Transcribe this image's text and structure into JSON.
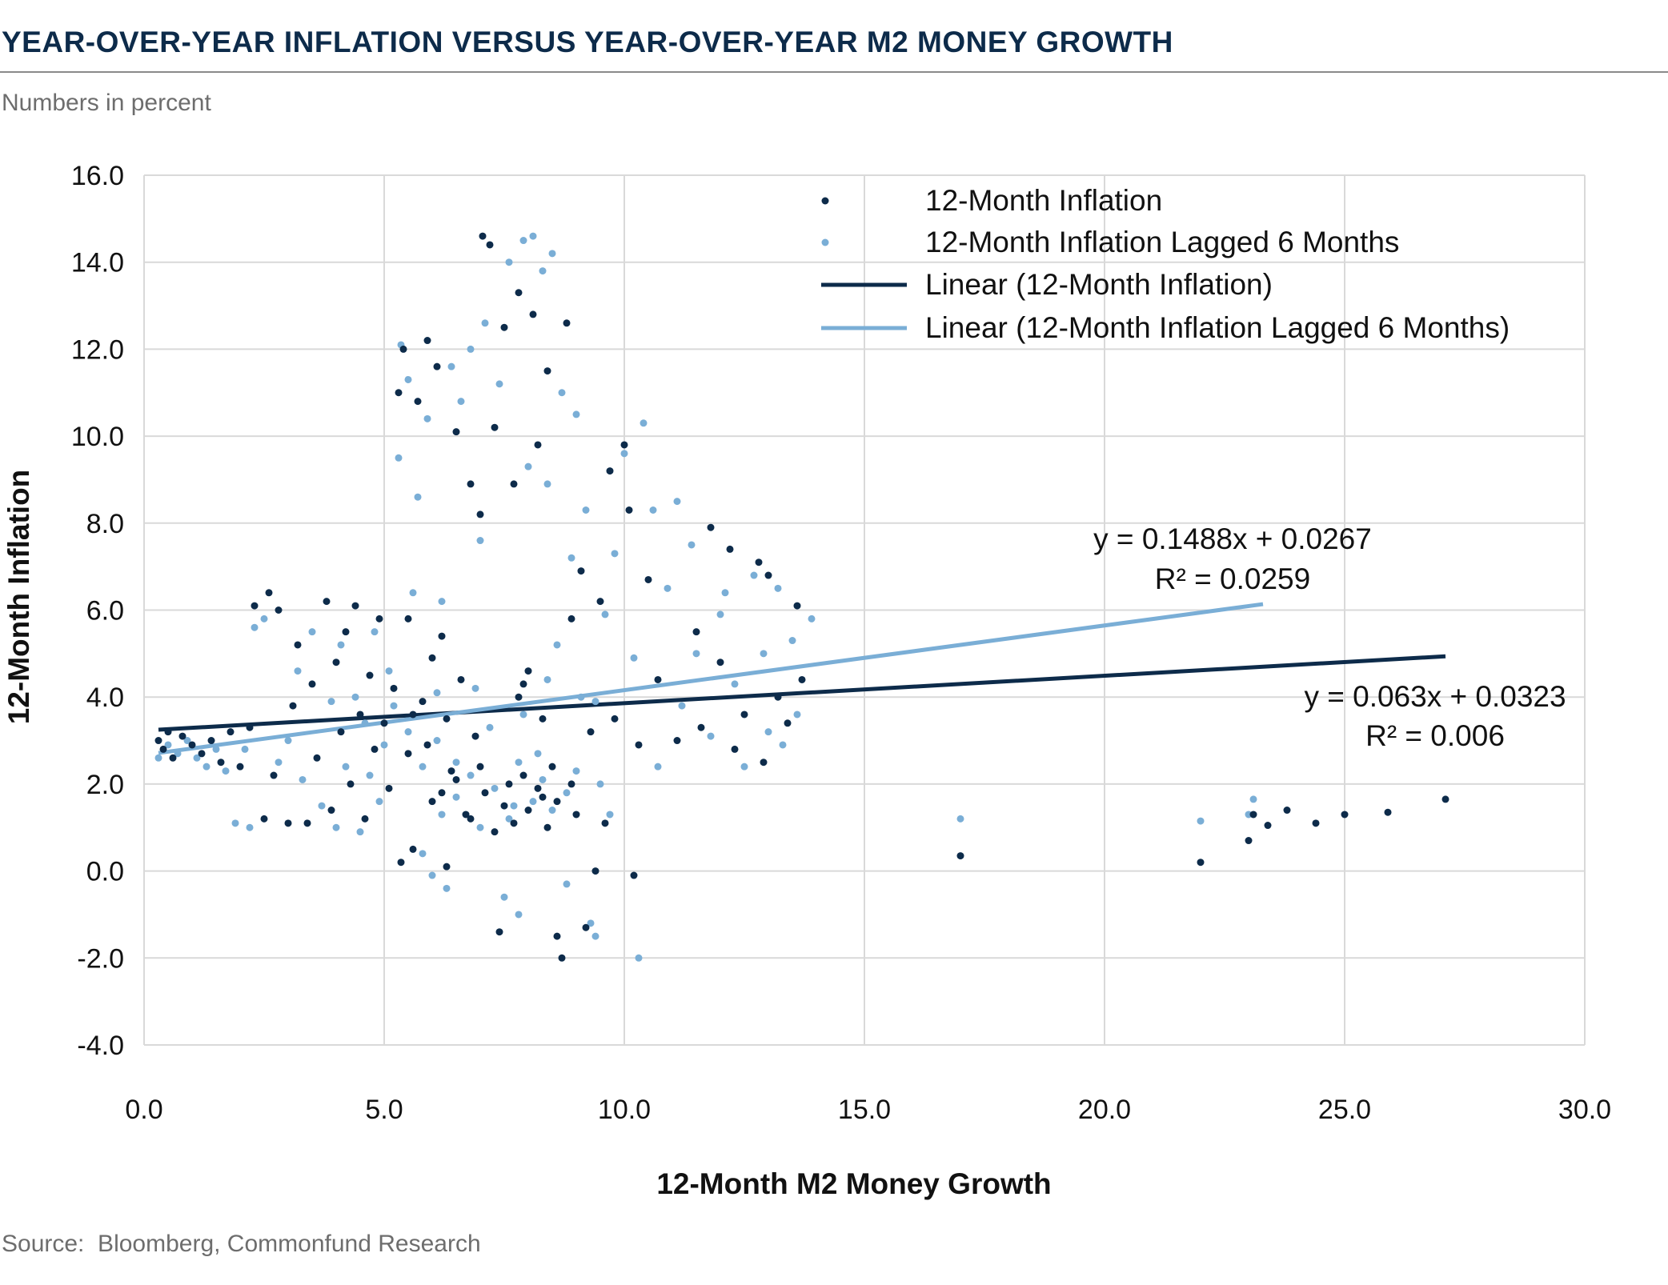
{
  "header": {
    "title": "YEAR-OVER-YEAR INFLATION VERSUS YEAR-OVER-YEAR M2 MONEY GROWTH",
    "subtitle": "Numbers in percent"
  },
  "footer": {
    "source": "Source:  Bloomberg, Commonfund Research"
  },
  "colors": {
    "dark": "#0d2b4a",
    "light": "#7aaed6",
    "grid": "#d9d9d9",
    "title": "#0d2b4a"
  },
  "chart_data": {
    "type": "scatter",
    "title": "YEAR-OVER-YEAR INFLATION VERSUS YEAR-OVER-YEAR M2 MONEY GROWTH",
    "xlabel": "12-Month M2 Money Growth",
    "ylabel": "12-Month Inflation",
    "xlim": [
      0,
      30
    ],
    "ylim": [
      -4,
      16
    ],
    "xticks": [
      "0.0",
      "5.0",
      "10.0",
      "15.0",
      "20.0",
      "25.0",
      "30.0"
    ],
    "yticks": [
      "16.0",
      "14.0",
      "12.0",
      "10.0",
      "8.0",
      "6.0",
      "4.0",
      "2.0",
      "0.0",
      "-2.0",
      "-4.0"
    ],
    "grid": true,
    "legend_position": "top-right",
    "legend": [
      "12-Month Inflation",
      "12-Month Inflation Lagged 6 Months",
      "Linear (12-Month Inflation)",
      "Linear (12-Month Inflation Lagged 6 Months)"
    ],
    "series": [
      {
        "name": "12-Month Inflation",
        "color": "#0d2b4a",
        "points": [
          [
            0.3,
            3.0
          ],
          [
            0.4,
            2.8
          ],
          [
            0.5,
            3.2
          ],
          [
            0.6,
            2.6
          ],
          [
            0.8,
            3.1
          ],
          [
            1.0,
            2.9
          ],
          [
            1.2,
            2.7
          ],
          [
            1.4,
            3.0
          ],
          [
            1.6,
            2.5
          ],
          [
            1.8,
            3.2
          ],
          [
            2.0,
            2.4
          ],
          [
            2.2,
            3.3
          ],
          [
            2.3,
            6.1
          ],
          [
            2.6,
            6.4
          ],
          [
            2.8,
            6.0
          ],
          [
            2.5,
            1.2
          ],
          [
            2.7,
            2.2
          ],
          [
            3.0,
            1.1
          ],
          [
            3.1,
            3.8
          ],
          [
            3.2,
            5.2
          ],
          [
            3.4,
            1.1
          ],
          [
            3.5,
            4.3
          ],
          [
            3.6,
            2.6
          ],
          [
            3.8,
            6.2
          ],
          [
            3.9,
            1.4
          ],
          [
            4.0,
            4.8
          ],
          [
            4.1,
            3.2
          ],
          [
            4.2,
            5.5
          ],
          [
            4.3,
            2.0
          ],
          [
            4.4,
            6.1
          ],
          [
            4.5,
            3.6
          ],
          [
            4.6,
            1.2
          ],
          [
            4.7,
            4.5
          ],
          [
            4.8,
            2.8
          ],
          [
            4.9,
            5.8
          ],
          [
            5.0,
            3.4
          ],
          [
            5.1,
            1.9
          ],
          [
            5.2,
            4.2
          ],
          [
            5.3,
            11.0
          ],
          [
            5.35,
            0.2
          ],
          [
            5.4,
            12.0
          ],
          [
            5.5,
            2.7
          ],
          [
            5.6,
            0.5
          ],
          [
            5.7,
            10.8
          ],
          [
            5.8,
            3.9
          ],
          [
            5.9,
            12.2
          ],
          [
            6.0,
            1.6
          ],
          [
            6.1,
            11.6
          ],
          [
            6.2,
            5.4
          ],
          [
            6.3,
            0.1
          ],
          [
            6.4,
            2.3
          ],
          [
            6.5,
            10.1
          ],
          [
            6.6,
            4.4
          ],
          [
            6.7,
            1.3
          ],
          [
            6.8,
            8.9
          ],
          [
            6.9,
            3.1
          ],
          [
            7.0,
            8.2
          ],
          [
            7.05,
            14.6
          ],
          [
            7.1,
            1.8
          ],
          [
            7.2,
            14.4
          ],
          [
            7.3,
            10.2
          ],
          [
            7.4,
            -1.4
          ],
          [
            7.5,
            12.5
          ],
          [
            7.6,
            2.0
          ],
          [
            7.7,
            8.9
          ],
          [
            7.8,
            13.3
          ],
          [
            7.9,
            4.3
          ],
          [
            8.0,
            1.4
          ],
          [
            8.1,
            12.8
          ],
          [
            8.2,
            9.8
          ],
          [
            8.3,
            1.7
          ],
          [
            8.4,
            11.5
          ],
          [
            8.5,
            2.4
          ],
          [
            8.6,
            -1.5
          ],
          [
            8.7,
            -2.0
          ],
          [
            8.8,
            12.6
          ],
          [
            8.9,
            5.8
          ],
          [
            9.0,
            1.3
          ],
          [
            9.1,
            6.9
          ],
          [
            9.2,
            -1.3
          ],
          [
            9.3,
            3.2
          ],
          [
            9.4,
            0.0
          ],
          [
            9.5,
            6.2
          ],
          [
            9.6,
            1.1
          ],
          [
            9.7,
            9.2
          ],
          [
            9.8,
            3.5
          ],
          [
            10.0,
            9.8
          ],
          [
            10.1,
            8.3
          ],
          [
            10.2,
            -0.1
          ],
          [
            10.3,
            2.9
          ],
          [
            10.5,
            6.7
          ],
          [
            10.7,
            4.4
          ],
          [
            11.1,
            3.0
          ],
          [
            11.5,
            5.5
          ],
          [
            11.6,
            3.3
          ],
          [
            11.8,
            7.9
          ],
          [
            12.0,
            4.8
          ],
          [
            12.2,
            7.4
          ],
          [
            12.3,
            2.8
          ],
          [
            12.5,
            3.6
          ],
          [
            12.8,
            7.1
          ],
          [
            12.9,
            2.5
          ],
          [
            13.0,
            6.8
          ],
          [
            13.2,
            4.0
          ],
          [
            13.4,
            3.4
          ],
          [
            13.6,
            6.1
          ],
          [
            13.7,
            4.4
          ],
          [
            6.2,
            1.8
          ],
          [
            6.5,
            2.1
          ],
          [
            6.8,
            1.2
          ],
          [
            7.0,
            2.4
          ],
          [
            7.3,
            0.9
          ],
          [
            7.5,
            1.5
          ],
          [
            7.7,
            1.1
          ],
          [
            7.9,
            2.2
          ],
          [
            8.2,
            1.9
          ],
          [
            8.4,
            1.0
          ],
          [
            8.6,
            1.6
          ],
          [
            8.9,
            2.0
          ],
          [
            5.6,
            3.6
          ],
          [
            5.9,
            2.9
          ],
          [
            6.3,
            3.5
          ],
          [
            6.0,
            4.9
          ],
          [
            7.8,
            4.0
          ],
          [
            8.0,
            4.6
          ],
          [
            8.3,
            3.5
          ],
          [
            5.5,
            5.8
          ],
          [
            17.0,
            0.35
          ],
          [
            22.0,
            0.2
          ],
          [
            23.0,
            0.7
          ],
          [
            23.1,
            1.3
          ],
          [
            23.4,
            1.05
          ],
          [
            23.8,
            1.4
          ],
          [
            24.4,
            1.1
          ],
          [
            25.0,
            1.3
          ],
          [
            25.9,
            1.35
          ],
          [
            27.1,
            1.65
          ]
        ]
      },
      {
        "name": "12-Month Inflation Lagged 6 Months",
        "color": "#7aaed6",
        "points": [
          [
            0.3,
            2.6
          ],
          [
            0.5,
            2.9
          ],
          [
            0.7,
            2.7
          ],
          [
            0.9,
            3.0
          ],
          [
            1.1,
            2.6
          ],
          [
            1.3,
            2.4
          ],
          [
            1.5,
            2.8
          ],
          [
            1.7,
            2.3
          ],
          [
            1.9,
            1.1
          ],
          [
            2.1,
            2.8
          ],
          [
            2.2,
            1.0
          ],
          [
            2.3,
            5.6
          ],
          [
            2.5,
            5.8
          ],
          [
            2.8,
            2.5
          ],
          [
            3.0,
            3.0
          ],
          [
            3.2,
            4.6
          ],
          [
            3.3,
            2.1
          ],
          [
            3.5,
            5.5
          ],
          [
            3.7,
            1.5
          ],
          [
            3.9,
            3.9
          ],
          [
            4.0,
            1.0
          ],
          [
            4.1,
            5.2
          ],
          [
            4.2,
            2.4
          ],
          [
            4.4,
            4.0
          ],
          [
            4.5,
            0.9
          ],
          [
            4.6,
            3.4
          ],
          [
            4.8,
            5.5
          ],
          [
            4.9,
            1.6
          ],
          [
            5.0,
            2.9
          ],
          [
            5.1,
            4.6
          ],
          [
            5.3,
            9.5
          ],
          [
            5.35,
            12.1
          ],
          [
            5.5,
            11.3
          ],
          [
            5.6,
            6.4
          ],
          [
            5.7,
            8.6
          ],
          [
            5.8,
            0.4
          ],
          [
            5.9,
            10.4
          ],
          [
            6.0,
            -0.1
          ],
          [
            6.1,
            3.0
          ],
          [
            6.2,
            6.2
          ],
          [
            6.3,
            -0.4
          ],
          [
            6.4,
            11.6
          ],
          [
            6.5,
            2.5
          ],
          [
            6.6,
            10.8
          ],
          [
            6.8,
            12.0
          ],
          [
            6.9,
            4.2
          ],
          [
            7.0,
            7.6
          ],
          [
            7.1,
            12.6
          ],
          [
            7.2,
            3.3
          ],
          [
            7.4,
            11.2
          ],
          [
            7.5,
            -0.6
          ],
          [
            7.6,
            14.0
          ],
          [
            7.7,
            1.5
          ],
          [
            7.8,
            -1.0
          ],
          [
            7.9,
            14.5
          ],
          [
            8.0,
            9.3
          ],
          [
            8.1,
            14.6
          ],
          [
            8.2,
            2.7
          ],
          [
            8.3,
            13.8
          ],
          [
            8.4,
            8.9
          ],
          [
            8.5,
            14.2
          ],
          [
            8.6,
            5.2
          ],
          [
            8.7,
            11.0
          ],
          [
            8.8,
            -0.3
          ],
          [
            8.9,
            7.2
          ],
          [
            9.0,
            10.5
          ],
          [
            9.1,
            4.0
          ],
          [
            9.2,
            8.3
          ],
          [
            9.3,
            -1.2
          ],
          [
            9.4,
            -1.5
          ],
          [
            9.5,
            2.0
          ],
          [
            9.6,
            5.9
          ],
          [
            9.7,
            1.3
          ],
          [
            9.8,
            7.3
          ],
          [
            10.0,
            9.6
          ],
          [
            10.2,
            4.9
          ],
          [
            10.3,
            -2.0
          ],
          [
            10.4,
            10.3
          ],
          [
            10.6,
            8.3
          ],
          [
            10.7,
            2.4
          ],
          [
            10.9,
            6.5
          ],
          [
            11.1,
            8.5
          ],
          [
            11.2,
            3.8
          ],
          [
            11.4,
            7.5
          ],
          [
            11.5,
            5.0
          ],
          [
            11.8,
            3.1
          ],
          [
            12.0,
            5.9
          ],
          [
            12.1,
            6.4
          ],
          [
            12.3,
            4.3
          ],
          [
            12.5,
            2.4
          ],
          [
            12.7,
            6.8
          ],
          [
            12.9,
            5.0
          ],
          [
            13.0,
            3.2
          ],
          [
            13.2,
            6.5
          ],
          [
            13.3,
            2.9
          ],
          [
            13.5,
            5.3
          ],
          [
            13.6,
            3.6
          ],
          [
            13.9,
            5.8
          ],
          [
            6.2,
            1.3
          ],
          [
            6.5,
            1.7
          ],
          [
            6.8,
            2.2
          ],
          [
            7.0,
            1.0
          ],
          [
            7.3,
            1.9
          ],
          [
            7.6,
            1.2
          ],
          [
            7.8,
            2.5
          ],
          [
            8.1,
            1.6
          ],
          [
            8.3,
            2.1
          ],
          [
            8.5,
            1.4
          ],
          [
            8.8,
            1.8
          ],
          [
            9.0,
            2.3
          ],
          [
            5.5,
            3.2
          ],
          [
            5.8,
            2.4
          ],
          [
            6.1,
            4.1
          ],
          [
            5.2,
            3.8
          ],
          [
            4.7,
            2.2
          ],
          [
            7.9,
            3.6
          ],
          [
            8.4,
            4.4
          ],
          [
            9.4,
            3.9
          ],
          [
            17.0,
            1.2
          ],
          [
            22.0,
            1.15
          ],
          [
            23.0,
            1.3
          ],
          [
            23.1,
            1.65
          ]
        ]
      }
    ],
    "trendlines": [
      {
        "name": "Linear (12-Month Inflation)",
        "color": "#0d2b4a",
        "slope": 0.063,
        "intercept": 3.23,
        "x_range": [
          0.3,
          27.1
        ],
        "equation": "y = 0.063x + 0.0323",
        "r2": "R² = 0.006"
      },
      {
        "name": "Linear (12-Month Inflation Lagged 6 Months)",
        "color": "#7aaed6",
        "slope": 0.1488,
        "intercept": 2.67,
        "x_range": [
          0.3,
          23.3
        ],
        "equation": "y = 0.1488x + 0.0267",
        "r2": "R² = 0.0259"
      }
    ]
  }
}
